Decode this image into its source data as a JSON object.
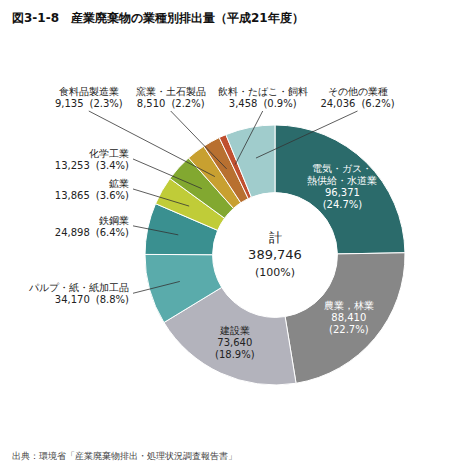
{
  "chart_data": {
    "type": "donut",
    "title": "図3-1-8　産業廃棄物の業種別排出量（平成21年度）",
    "source": "出典：環境省「産業廃棄物排出・処理状況調査報告書」",
    "center_labels": [
      "計",
      "389,746",
      "(100%)"
    ],
    "categories": [
      "電気・ガス・\n熱供給・水道業",
      "農業，林業",
      "建設業",
      "パルプ・紙・紙加工品",
      "鉄鋼業",
      "鉱業",
      "化学工業",
      "食料品製造業",
      "窯業・土石製品",
      "飲料・たばこ・飼料",
      "その他の業種"
    ],
    "values": [
      96371,
      88410,
      73640,
      34170,
      24898,
      13865,
      13253,
      9135,
      8510,
      3458,
      24036
    ],
    "value_labels": [
      "96,371",
      "88,410",
      "73,640",
      "34,170",
      "24,898",
      "13,865",
      "13,253",
      "9,135",
      "8,510",
      "3,458",
      "24,036"
    ],
    "percent_labels": [
      "(24.7%)",
      "(22.7%)",
      "(18.9%)",
      "(8.8%)",
      "(6.4%)",
      "(3.6%)",
      "(3.4%)",
      "(2.3%)",
      "(2.2%)",
      "(0.9%)",
      "(6.2%)"
    ],
    "colors": [
      "#2b6b6b",
      "#878787",
      "#b3b3bc",
      "#5aabab",
      "#3a9090",
      "#c0cc38",
      "#82a830",
      "#c8a030",
      "#b87030",
      "#c05030",
      "#a0cccc"
    ],
    "data_labels": true
  }
}
